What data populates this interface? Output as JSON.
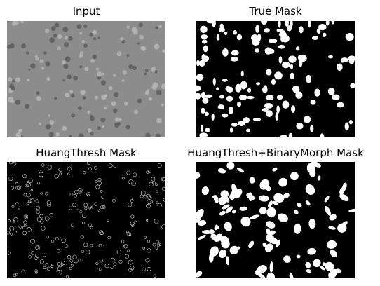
{
  "panels": [
    {
      "title": "Input",
      "kind": "input",
      "seed": 11,
      "count": 150
    },
    {
      "title": "True Mask",
      "kind": "true_mask",
      "seed": 22,
      "count": 130
    },
    {
      "title": "HuangThresh Mask",
      "kind": "huang",
      "seed": 33,
      "count": 220
    },
    {
      "title": "HuangThresh+BinaryMorph Mask",
      "kind": "morph",
      "seed": 44,
      "count": 110
    }
  ],
  "colors": {
    "input_bg": "#8c8c8c",
    "mask_bg": "#000000",
    "mask_fg": "#ffffff"
  }
}
